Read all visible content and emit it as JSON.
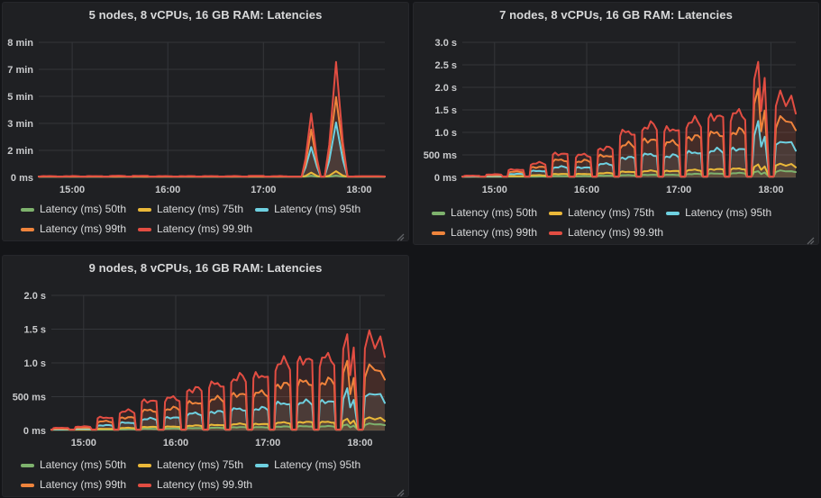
{
  "app": {
    "name": "grafana-dashboard"
  },
  "theme": {
    "page_bg": "#141518",
    "panel_bg": "#1f2023",
    "grid_color": "#34363a",
    "axis_text_color": "#c9cacc",
    "title_color": "#d8d9da"
  },
  "legend": {
    "items": [
      {
        "key": "p50",
        "label": "Latency (ms) 50th",
        "color": "#7EB26D"
      },
      {
        "key": "p75",
        "label": "Latency (ms) 75th",
        "color": "#EAB839"
      },
      {
        "key": "p95",
        "label": "Latency (ms) 95th",
        "color": "#6ED0E0"
      },
      {
        "key": "p99",
        "label": "Latency (ms) 99th",
        "color": "#EF843C"
      },
      {
        "key": "p999",
        "label": "Latency (ms) 99.9th",
        "color": "#E24D42"
      }
    ]
  },
  "panels": [
    {
      "title": "5 nodes, 8 vCPUs, 16 GB RAM: Latencies",
      "chart_data": {
        "type": "area",
        "title": "5 nodes, 8 vCPUs, 16 GB RAM: Latencies",
        "unit": "seconds",
        "legend_position": "bottom",
        "grid": true,
        "x_domain": [
          14.65,
          18.27
        ],
        "x_ticks": {
          "values": [
            15,
            16,
            17,
            18
          ],
          "labels": [
            "15:00",
            "16:00",
            "17:00",
            "18:00"
          ]
        },
        "y_max": 500,
        "y_ticks": {
          "values": [
            0,
            100,
            200,
            300,
            400,
            500
          ],
          "labels": [
            "0 ms",
            "2 min",
            "3 min",
            "5 min",
            "7 min",
            "8 min"
          ]
        },
        "series_keys": [
          "p50",
          "p75",
          "p95",
          "p99",
          "p999"
        ],
        "segments": [
          {
            "s": 14.66,
            "e": 14.85,
            "sh": "bump",
            "p": {
              "p50": 1.5,
              "p75": 2,
              "p95": 2.5,
              "p99": 3.5,
              "p999": 5
            }
          },
          {
            "s": 14.9,
            "e": 15.09,
            "sh": "bump",
            "p": {
              "p50": 1.5,
              "p75": 2,
              "p95": 2.5,
              "p99": 3.5,
              "p999": 5
            }
          },
          {
            "s": 15.14,
            "e": 15.33,
            "sh": "bump",
            "p": {
              "p50": 1.5,
              "p75": 2,
              "p95": 2.5,
              "p99": 3.5,
              "p999": 5
            }
          },
          {
            "s": 15.38,
            "e": 15.57,
            "sh": "bump",
            "p": {
              "p50": 1.5,
              "p75": 2,
              "p95": 2.5,
              "p99": 3.5,
              "p999": 6
            }
          },
          {
            "s": 15.62,
            "e": 15.81,
            "sh": "bump",
            "p": {
              "p50": 1.5,
              "p75": 2,
              "p95": 2.5,
              "p99": 3.5,
              "p999": 6
            }
          },
          {
            "s": 15.87,
            "e": 16.06,
            "sh": "bump",
            "p": {
              "p50": 1.5,
              "p75": 2,
              "p95": 2.5,
              "p99": 3.5,
              "p999": 5
            }
          },
          {
            "s": 16.11,
            "e": 16.3,
            "sh": "bump",
            "p": {
              "p50": 1.5,
              "p75": 2,
              "p95": 2.5,
              "p99": 3.5,
              "p999": 5
            }
          },
          {
            "s": 16.35,
            "e": 16.54,
            "sh": "bump",
            "p": {
              "p50": 1.5,
              "p75": 2,
              "p95": 2.5,
              "p99": 3.5,
              "p999": 5
            }
          },
          {
            "s": 16.59,
            "e": 16.78,
            "sh": "bump",
            "p": {
              "p50": 1.5,
              "p75": 2,
              "p95": 2.5,
              "p99": 3.5,
              "p999": 5
            }
          },
          {
            "s": 16.83,
            "e": 17.02,
            "sh": "bump",
            "p": {
              "p50": 1.5,
              "p75": 2,
              "p95": 2.5,
              "p99": 3.5,
              "p999": 6
            }
          },
          {
            "s": 17.07,
            "e": 17.26,
            "sh": "bump",
            "p": {
              "p50": 1.5,
              "p75": 2,
              "p95": 2.5,
              "p99": 3.5,
              "p999": 5
            }
          },
          {
            "s": 17.4,
            "e": 17.6,
            "sh": "spike",
            "p": {
              "p50": 6,
              "p75": 18,
              "p95": 118,
              "p99": 172,
              "p999": 230
            }
          },
          {
            "s": 17.64,
            "e": 17.88,
            "sh": "spike",
            "p": {
              "p50": 7,
              "p75": 22,
              "p95": 203,
              "p99": 312,
              "p999": 415
            }
          },
          {
            "s": 17.93,
            "e": 18.27,
            "sh": "end",
            "p": {
              "p50": 1.5,
              "p75": 2,
              "p95": 2.5,
              "p99": 3.5,
              "p999": 5
            }
          }
        ]
      }
    },
    {
      "title": "7 nodes, 8 vCPUs, 16 GB RAM: Latencies",
      "chart_data": {
        "type": "area",
        "title": "7 nodes, 8 vCPUs, 16 GB RAM: Latencies",
        "unit": "seconds",
        "legend_position": "bottom",
        "grid": true,
        "x_domain": [
          14.65,
          18.27
        ],
        "x_ticks": {
          "values": [
            15,
            16,
            17,
            18
          ],
          "labels": [
            "15:00",
            "16:00",
            "17:00",
            "18:00"
          ]
        },
        "y_max": 3.0,
        "y_ticks": {
          "values": [
            0,
            0.5,
            1.0,
            1.5,
            2.0,
            2.5,
            3.0
          ],
          "labels": [
            "0 ms",
            "500 ms",
            "1.0 s",
            "1.5 s",
            "2.0 s",
            "2.5 s",
            "3.0 s"
          ]
        },
        "series_keys": [
          "p50",
          "p75",
          "p95",
          "p99",
          "p999"
        ],
        "segments": [
          {
            "s": 14.66,
            "e": 14.85,
            "sh": "bump",
            "p": {
              "p50": 0.005,
              "p75": 0.01,
              "p95": 0.02,
              "p99": 0.03,
              "p999": 0.04
            }
          },
          {
            "s": 14.9,
            "e": 15.09,
            "sh": "bump",
            "p": {
              "p50": 0.01,
              "p75": 0.015,
              "p95": 0.03,
              "p99": 0.05,
              "p999": 0.07
            }
          },
          {
            "s": 15.14,
            "e": 15.33,
            "sh": "bump",
            "p": {
              "p50": 0.015,
              "p75": 0.03,
              "p95": 0.08,
              "p99": 0.13,
              "p999": 0.18
            }
          },
          {
            "s": 15.38,
            "e": 15.57,
            "sh": "bump",
            "p": {
              "p50": 0.02,
              "p75": 0.05,
              "p95": 0.15,
              "p99": 0.24,
              "p999": 0.33
            }
          },
          {
            "s": 15.62,
            "e": 15.81,
            "sh": "bump",
            "p": {
              "p50": 0.03,
              "p75": 0.08,
              "p95": 0.24,
              "p99": 0.4,
              "p999": 0.55
            }
          },
          {
            "s": 15.87,
            "e": 16.06,
            "sh": "bump",
            "p": {
              "p50": 0.03,
              "p75": 0.08,
              "p95": 0.23,
              "p99": 0.38,
              "p999": 0.52
            }
          },
          {
            "s": 16.11,
            "e": 16.3,
            "sh": "bump",
            "p": {
              "p50": 0.04,
              "p75": 0.1,
              "p95": 0.31,
              "p99": 0.5,
              "p999": 0.68
            }
          },
          {
            "s": 16.35,
            "e": 16.54,
            "sh": "bump",
            "p": {
              "p50": 0.05,
              "p75": 0.13,
              "p95": 0.46,
              "p99": 0.76,
              "p999": 1.05
            }
          },
          {
            "s": 16.59,
            "e": 16.78,
            "sh": "bump",
            "p": {
              "p50": 0.06,
              "p75": 0.15,
              "p95": 0.53,
              "p99": 0.87,
              "p999": 1.2
            }
          },
          {
            "s": 16.83,
            "e": 17.02,
            "sh": "bump",
            "p": {
              "p50": 0.06,
              "p75": 0.15,
              "p95": 0.5,
              "p99": 0.81,
              "p999": 1.12
            }
          },
          {
            "s": 17.07,
            "e": 17.26,
            "sh": "bump",
            "p": {
              "p50": 0.08,
              "p75": 0.17,
              "p95": 0.58,
              "p99": 0.94,
              "p999": 1.3
            }
          },
          {
            "s": 17.31,
            "e": 17.5,
            "sh": "bump",
            "p": {
              "p50": 0.09,
              "p75": 0.19,
              "p95": 0.63,
              "p99": 1.02,
              "p999": 1.42
            }
          },
          {
            "s": 17.55,
            "e": 17.74,
            "sh": "bump",
            "p": {
              "p50": 0.1,
              "p75": 0.2,
              "p95": 0.66,
              "p99": 1.07,
              "p999": 1.48
            }
          },
          {
            "s": 17.79,
            "e": 17.98,
            "sh": "jag",
            "p": {
              "p50": 0.14,
              "p75": 0.3,
              "p95": 1.2,
              "p99": 1.95,
              "p999": 2.7
            }
          },
          {
            "s": 18.03,
            "e": 18.27,
            "sh": "end",
            "p": {
              "p50": 0.15,
              "p75": 0.3,
              "p95": 0.83,
              "p99": 1.35,
              "p999": 1.85
            }
          }
        ]
      }
    },
    {
      "title": "9 nodes, 8 vCPUs, 16 GB RAM: Latencies",
      "chart_data": {
        "type": "area",
        "title": "9 nodes, 8 vCPUs, 16 GB RAM: Latencies",
        "unit": "seconds",
        "legend_position": "bottom",
        "grid": true,
        "x_domain": [
          14.65,
          18.27
        ],
        "x_ticks": {
          "values": [
            15,
            16,
            17,
            18
          ],
          "labels": [
            "15:00",
            "16:00",
            "17:00",
            "18:00"
          ]
        },
        "y_max": 2.0,
        "y_ticks": {
          "values": [
            0,
            0.5,
            1.0,
            1.5,
            2.0
          ],
          "labels": [
            "0 ms",
            "500 ms",
            "1.0 s",
            "1.5 s",
            "2.0 s"
          ]
        },
        "series_keys": [
          "p50",
          "p75",
          "p95",
          "p99",
          "p999"
        ],
        "segments": [
          {
            "s": 14.66,
            "e": 14.85,
            "sh": "bump",
            "p": {
              "p50": 0.005,
              "p75": 0.01,
              "p95": 0.016,
              "p99": 0.027,
              "p999": 0.04
            }
          },
          {
            "s": 14.9,
            "e": 15.09,
            "sh": "bump",
            "p": {
              "p50": 0.006,
              "p75": 0.012,
              "p95": 0.024,
              "p99": 0.04,
              "p999": 0.06
            }
          },
          {
            "s": 15.14,
            "e": 15.33,
            "sh": "bump",
            "p": {
              "p50": 0.012,
              "p75": 0.025,
              "p95": 0.08,
              "p99": 0.14,
              "p999": 0.2
            }
          },
          {
            "s": 15.38,
            "e": 15.57,
            "sh": "bump",
            "p": {
              "p50": 0.02,
              "p75": 0.04,
              "p95": 0.12,
              "p99": 0.2,
              "p999": 0.3
            }
          },
          {
            "s": 15.62,
            "e": 15.81,
            "sh": "bump",
            "p": {
              "p50": 0.027,
              "p75": 0.055,
              "p95": 0.18,
              "p99": 0.31,
              "p999": 0.46
            }
          },
          {
            "s": 15.87,
            "e": 16.06,
            "sh": "bump",
            "p": {
              "p50": 0.03,
              "p75": 0.06,
              "p95": 0.2,
              "p99": 0.34,
              "p999": 0.5
            }
          },
          {
            "s": 16.11,
            "e": 16.3,
            "sh": "bump",
            "p": {
              "p50": 0.037,
              "p75": 0.075,
              "p95": 0.26,
              "p99": 0.43,
              "p999": 0.64
            }
          },
          {
            "s": 16.35,
            "e": 16.54,
            "sh": "bump",
            "p": {
              "p50": 0.042,
              "p75": 0.085,
              "p95": 0.29,
              "p99": 0.49,
              "p999": 0.72
            }
          },
          {
            "s": 16.59,
            "e": 16.78,
            "sh": "bump",
            "p": {
              "p50": 0.05,
              "p75": 0.1,
              "p95": 0.33,
              "p99": 0.56,
              "p999": 0.82
            }
          },
          {
            "s": 16.83,
            "e": 17.02,
            "sh": "bump",
            "p": {
              "p50": 0.05,
              "p75": 0.1,
              "p95": 0.34,
              "p99": 0.58,
              "p999": 0.85
            }
          },
          {
            "s": 17.07,
            "e": 17.26,
            "sh": "bump",
            "p": {
              "p50": 0.06,
              "p75": 0.12,
              "p95": 0.42,
              "p99": 0.71,
              "p999": 1.05
            }
          },
          {
            "s": 17.31,
            "e": 17.5,
            "sh": "bump",
            "p": {
              "p50": 0.065,
              "p75": 0.13,
              "p95": 0.44,
              "p99": 0.75,
              "p999": 1.1
            }
          },
          {
            "s": 17.55,
            "e": 17.74,
            "sh": "bump",
            "p": {
              "p50": 0.065,
              "p75": 0.13,
              "p95": 0.45,
              "p99": 0.76,
              "p999": 1.12
            }
          },
          {
            "s": 17.79,
            "e": 17.98,
            "sh": "jag",
            "p": {
              "p50": 0.09,
              "p75": 0.18,
              "p95": 0.6,
              "p99": 1.02,
              "p999": 1.5
            }
          },
          {
            "s": 18.03,
            "e": 18.27,
            "sh": "end",
            "p": {
              "p50": 0.1,
              "p75": 0.19,
              "p95": 0.57,
              "p99": 0.97,
              "p999": 1.42
            }
          }
        ]
      }
    }
  ]
}
